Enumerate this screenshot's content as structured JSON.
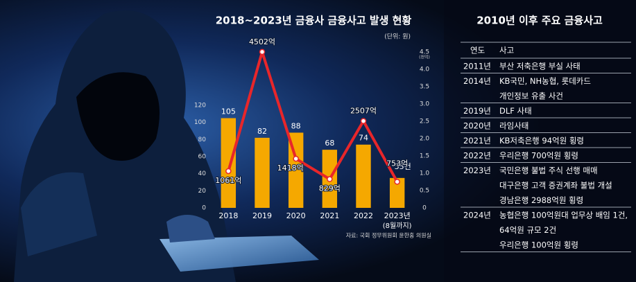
{
  "chart_data": {
    "type": "combo",
    "title": "2018~2023년 금융사 금융사고 발생 현황",
    "unit": "(단위: 원)",
    "categories": [
      "2018",
      "2019",
      "2020",
      "2021",
      "2022",
      "2023년"
    ],
    "x_note": "(8월까지)",
    "series": [
      {
        "type": "bar",
        "color": "#f5a800",
        "values": [
          105,
          82,
          88,
          68,
          74,
          35
        ],
        "value_labels": [
          "105",
          "82",
          "88",
          "68",
          "74",
          "35건"
        ]
      },
      {
        "type": "line",
        "axis": "y2",
        "color": "#e8262a",
        "values": [
          1.061,
          4.502,
          1.418,
          0.829,
          2.507,
          0.753
        ],
        "value_labels": [
          "1061억",
          "4502억",
          "1418억",
          "829억",
          "2507억",
          "753억"
        ]
      }
    ],
    "ylim": [
      0,
      120
    ],
    "yticks": [
      0,
      20,
      40,
      60,
      80,
      100,
      120
    ],
    "y2lim": [
      0,
      4.5
    ],
    "y2ticks": [
      0,
      0.5,
      {
        "value": 1,
        "label": "1.0"
      },
      1.5,
      {
        "value": 2,
        "label": "2.0"
      },
      2.5,
      {
        "value": 3,
        "label": "3.0"
      },
      3.5,
      {
        "value": 4,
        "label": "4.0"
      },
      4.5
    ],
    "y2_unit": "(천억)",
    "grid": false,
    "source": "자료: 국회 정무위원회 윤한홍 의원실"
  },
  "table": {
    "title": "2010년 이후 주요 금융사고",
    "header": [
      "연도",
      "사고"
    ],
    "rows": [
      {
        "year": "2011년",
        "events": [
          "부산 저축은행 부실 사태"
        ]
      },
      {
        "year": "2014년",
        "events": [
          "KB국민, NH농협, 롯데카드",
          "개인정보 유출 사건"
        ]
      },
      {
        "year": "2019년",
        "events": [
          "DLF 사태"
        ]
      },
      {
        "year": "2020년",
        "events": [
          "라임사태"
        ]
      },
      {
        "year": "2021년",
        "events": [
          "KB저축은행 94억원 횡령"
        ]
      },
      {
        "year": "2022년",
        "events": [
          "우리은행 700억원 횡령"
        ]
      },
      {
        "year": "2023년",
        "events": [
          "국민은행 불법 주식 선행 매매",
          "대구은행 고객 증권계좌 불법 개설",
          "경남은행 2988억원 횡령"
        ]
      },
      {
        "year": "2024년",
        "events": [
          "농협은행 100억원대 업무상 배임 1건,",
          "64억원 규모 2건",
          "우리은행 100억원 횡령"
        ]
      }
    ]
  }
}
